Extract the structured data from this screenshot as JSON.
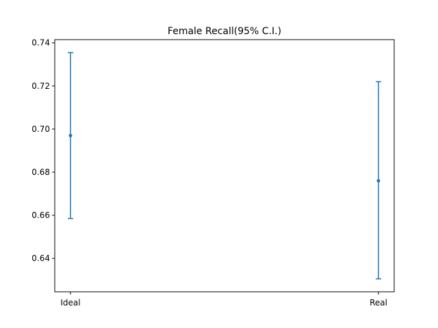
{
  "chart_data": {
    "type": "errorbar",
    "title": "Female Recall(95% C.I.)",
    "xlabel": "",
    "ylabel": "",
    "categories": [
      "Ideal",
      "Real"
    ],
    "series": [
      {
        "values": [
          0.697,
          0.676
        ],
        "lower": [
          0.6585,
          0.6305
        ],
        "upper": [
          0.7355,
          0.722
        ],
        "color": "#1f77b4"
      }
    ],
    "ylim": [
      0.6245,
      0.7415
    ],
    "yticks": [
      0.64,
      0.66,
      0.68,
      0.7,
      0.72,
      0.74
    ],
    "ytick_labels": [
      "0.64",
      "0.66",
      "0.68",
      "0.70",
      "0.72",
      "0.74"
    ],
    "grid": false,
    "legend": "none"
  }
}
